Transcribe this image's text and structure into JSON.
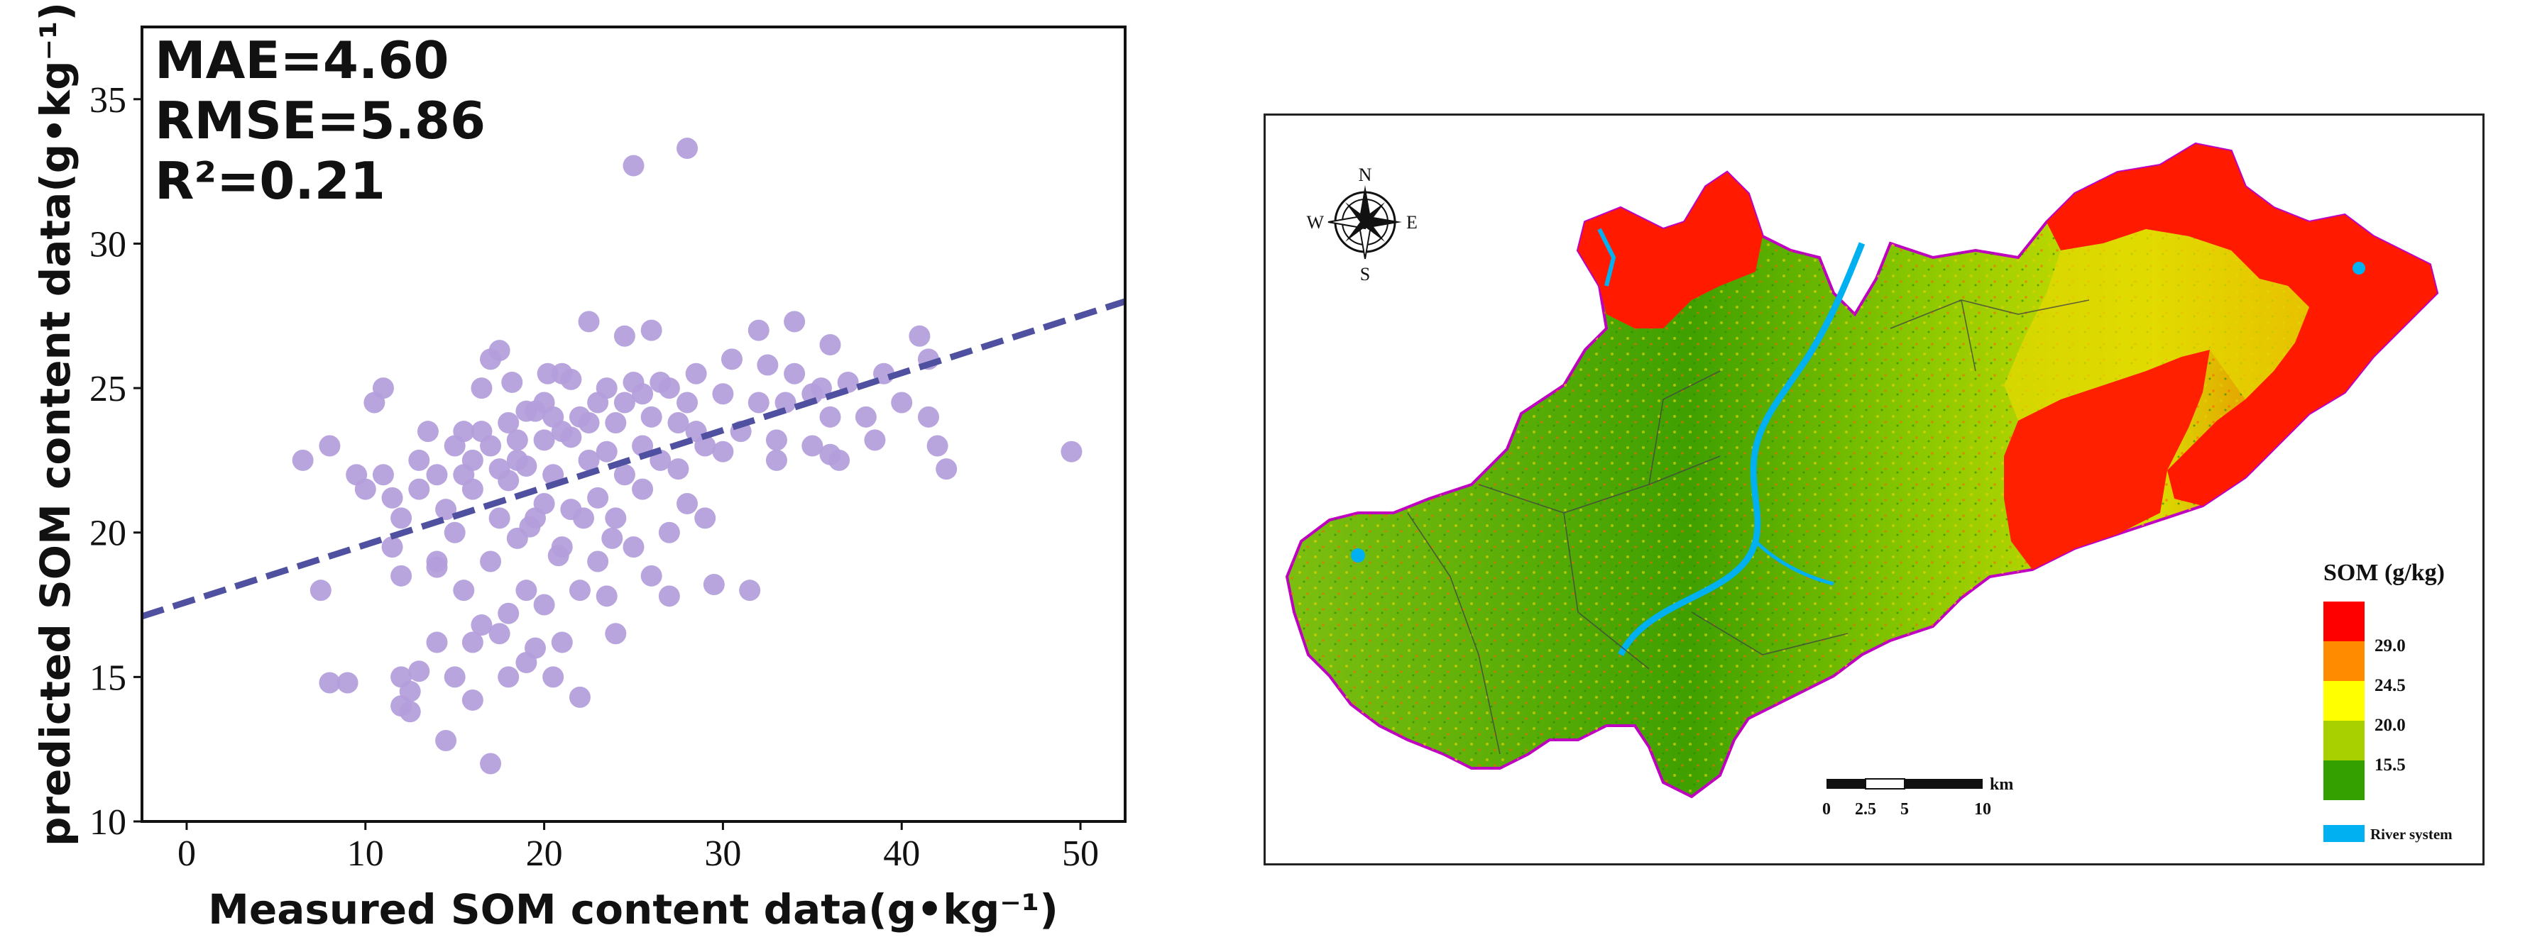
{
  "chart_data": [
    {
      "type": "scatter",
      "title": "",
      "xlabel": "Measured SOM content data(g•kg⁻¹)",
      "ylabel": "predicted SOM content data(g•kg⁻¹)",
      "xlim": [
        -2.5,
        52.5
      ],
      "ylim": [
        10,
        37.5
      ],
      "xticks": [
        "0",
        "10",
        "20",
        "30",
        "40",
        "50"
      ],
      "yticks": [
        "10",
        "15",
        "20",
        "25",
        "30",
        "35"
      ],
      "grid": false,
      "point_color": "#b39ddb",
      "line_color": "#5050a0",
      "stats": [
        "MAE=4.60",
        "RMSE=5.86",
        "R²=0.21"
      ],
      "fit_line": {
        "x": [
          -2.5,
          52.5
        ],
        "y": [
          17.1,
          28.0
        ]
      },
      "points": [
        [
          6.5,
          22.5
        ],
        [
          7.5,
          18
        ],
        [
          8,
          14.8
        ],
        [
          8,
          23
        ],
        [
          9,
          14.8
        ],
        [
          9.5,
          22
        ],
        [
          10,
          21.5
        ],
        [
          10.5,
          24.5
        ],
        [
          11,
          25
        ],
        [
          11,
          22
        ],
        [
          11.5,
          19.5
        ],
        [
          11.5,
          21.2
        ],
        [
          12,
          20.5
        ],
        [
          12,
          18.5
        ],
        [
          12,
          15
        ],
        [
          12,
          14
        ],
        [
          12.5,
          13.8
        ],
        [
          12.5,
          14.5
        ],
        [
          13,
          21.5
        ],
        [
          13,
          15.2
        ],
        [
          13,
          22.5
        ],
        [
          13.5,
          23.5
        ],
        [
          14,
          19
        ],
        [
          14,
          16.2
        ],
        [
          14,
          22
        ],
        [
          14,
          18.8
        ],
        [
          14.5,
          12.8
        ],
        [
          14.5,
          20.8
        ],
        [
          15,
          23
        ],
        [
          15,
          15
        ],
        [
          15,
          20
        ],
        [
          15.5,
          23.5
        ],
        [
          15.5,
          18
        ],
        [
          16,
          22.5
        ],
        [
          16,
          16.2
        ],
        [
          16,
          14.2
        ],
        [
          16,
          21.5
        ],
        [
          16.5,
          25
        ],
        [
          16.5,
          16.8
        ],
        [
          17,
          23
        ],
        [
          17,
          19
        ],
        [
          17,
          12
        ],
        [
          17,
          26
        ],
        [
          17.5,
          26.3
        ],
        [
          17.5,
          20.5
        ],
        [
          17.5,
          16.5
        ],
        [
          18,
          23.8
        ],
        [
          18,
          17.2
        ],
        [
          18,
          15
        ],
        [
          18,
          21.8
        ],
        [
          18.5,
          22.5
        ],
        [
          18.5,
          19.8
        ],
        [
          19,
          24.2
        ],
        [
          19,
          15.5
        ],
        [
          19,
          18
        ],
        [
          19,
          22.3
        ],
        [
          19.5,
          16
        ],
        [
          19.5,
          20.5
        ],
        [
          20,
          23.2
        ],
        [
          20,
          17.5
        ],
        [
          20,
          24.5
        ],
        [
          20,
          21
        ],
        [
          20.5,
          15
        ],
        [
          20.5,
          22
        ],
        [
          21,
          25.5
        ],
        [
          21,
          19.5
        ],
        [
          21,
          16.2
        ],
        [
          21,
          23.5
        ],
        [
          21.5,
          25.3
        ],
        [
          21.5,
          20.8
        ],
        [
          22,
          24
        ],
        [
          22,
          18
        ],
        [
          22,
          14.3
        ],
        [
          22.5,
          22.5
        ],
        [
          22.5,
          27.3
        ],
        [
          23,
          24.5
        ],
        [
          23,
          21.2
        ],
        [
          23,
          19
        ],
        [
          23.5,
          25
        ],
        [
          23.5,
          17.8
        ],
        [
          24,
          23.8
        ],
        [
          24,
          20.5
        ],
        [
          24,
          16.5
        ],
        [
          24.5,
          26.8
        ],
        [
          24.5,
          22
        ],
        [
          25,
          25.2
        ],
        [
          25,
          19.5
        ],
        [
          25,
          32.7
        ],
        [
          25.5,
          23
        ],
        [
          25.5,
          21.5
        ],
        [
          26,
          27
        ],
        [
          26,
          24
        ],
        [
          26,
          18.5
        ],
        [
          26.5,
          22.5
        ],
        [
          27,
          25
        ],
        [
          27,
          20
        ],
        [
          27,
          17.8
        ],
        [
          27.5,
          23.8
        ],
        [
          28,
          33.3
        ],
        [
          28,
          21
        ],
        [
          28,
          24.5
        ],
        [
          28.5,
          25.5
        ],
        [
          29,
          23
        ],
        [
          29,
          20.5
        ],
        [
          29.5,
          18.2
        ],
        [
          30,
          24.8
        ],
        [
          30,
          22.8
        ],
        [
          30.5,
          26
        ],
        [
          31,
          23.5
        ],
        [
          31.5,
          18
        ],
        [
          32,
          24.5
        ],
        [
          32,
          27
        ],
        [
          32.5,
          25.8
        ],
        [
          33,
          23.2
        ],
        [
          33,
          22.5
        ],
        [
          33.5,
          24.5
        ],
        [
          34,
          25.5
        ],
        [
          34,
          27.3
        ],
        [
          35,
          24.8
        ],
        [
          35,
          23
        ],
        [
          35.5,
          25
        ],
        [
          36,
          26.5
        ],
        [
          36,
          24
        ],
        [
          36,
          22.7
        ],
        [
          36.5,
          22.5
        ],
        [
          37,
          25.2
        ],
        [
          38,
          24
        ],
        [
          38.5,
          23.2
        ],
        [
          39,
          25.5
        ],
        [
          40,
          24.5
        ],
        [
          41,
          26.8
        ],
        [
          41.5,
          24
        ],
        [
          41.5,
          26
        ],
        [
          42,
          23
        ],
        [
          42.5,
          22.2
        ],
        [
          49.5,
          22.8
        ],
        [
          15.5,
          22
        ],
        [
          16.5,
          23.5
        ],
        [
          17.5,
          22.2
        ],
        [
          18.5,
          23.2
        ],
        [
          19.5,
          24.2
        ],
        [
          20.5,
          24
        ],
        [
          21.5,
          23.3
        ],
        [
          22.5,
          23.8
        ],
        [
          23.5,
          22.8
        ],
        [
          24.5,
          24.5
        ],
        [
          25.5,
          24.8
        ],
        [
          26.5,
          25.2
        ],
        [
          27.5,
          22.2
        ],
        [
          28.5,
          23.5
        ],
        [
          19.2,
          20.2
        ],
        [
          20.8,
          19.2
        ],
        [
          22.2,
          20.5
        ],
        [
          23.8,
          19.8
        ],
        [
          18.2,
          25.2
        ],
        [
          20.2,
          25.5
        ]
      ]
    },
    {
      "type": "map",
      "compass": {
        "n": "N",
        "s": "S",
        "e": "E",
        "w": "W"
      },
      "legend_title": "SOM (g/kg)",
      "legend_classes": [
        {
          "color": "#ff0000",
          "label": ""
        },
        {
          "color": "#ff8c00",
          "label": "29.0"
        },
        {
          "color": "#ffff00",
          "label": "24.5"
        },
        {
          "color": "#a8d000",
          "label": "20.0"
        },
        {
          "color": "#33a000",
          "label": "15.5"
        }
      ],
      "river": {
        "color": "#00b0f0",
        "label": "River system"
      },
      "scale_unit": "km",
      "scale_labels": [
        "0",
        "2.5",
        "5",
        "10"
      ]
    }
  ]
}
